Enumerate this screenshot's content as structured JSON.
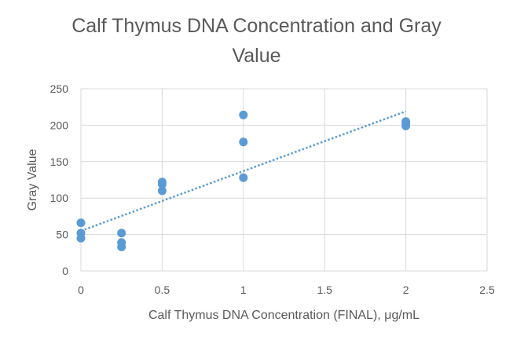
{
  "chart_data": {
    "type": "scatter",
    "title": "Calf Thymus DNA Concentration and Gray Value",
    "title_lines": [
      "Calf Thymus DNA Concentration and Gray",
      "Value"
    ],
    "xlabel": "Calf Thymus DNA Concentration (FINAL), μg/mL",
    "ylabel": "Gray Value",
    "xlim": [
      0,
      2.5
    ],
    "ylim": [
      0,
      250
    ],
    "x_ticks": [
      "0",
      "0.5",
      "1",
      "1.5",
      "2",
      "2.5"
    ],
    "y_ticks": [
      "0",
      "50",
      "100",
      "150",
      "200",
      "250"
    ],
    "grid": true,
    "legend": "none",
    "colors": {
      "marker": "#5B9BD5",
      "trendline": "#5B9BD5",
      "grid": "#D9D9D9",
      "text": "#595959"
    },
    "series": [
      {
        "points": [
          [
            0,
            66
          ],
          [
            0,
            52
          ],
          [
            0,
            45
          ],
          [
            0.25,
            52
          ],
          [
            0.25,
            39
          ],
          [
            0.25,
            33
          ],
          [
            0.5,
            122
          ],
          [
            0.5,
            119
          ],
          [
            0.5,
            110
          ],
          [
            1,
            214
          ],
          [
            1,
            177
          ],
          [
            1,
            128
          ],
          [
            2,
            205
          ],
          [
            2,
            202
          ],
          [
            2,
            199
          ]
        ]
      }
    ],
    "trendline": {
      "type": "linear",
      "style": "dotted",
      "x_range": [
        0,
        2
      ],
      "y_start": 55,
      "y_end": 219
    }
  }
}
